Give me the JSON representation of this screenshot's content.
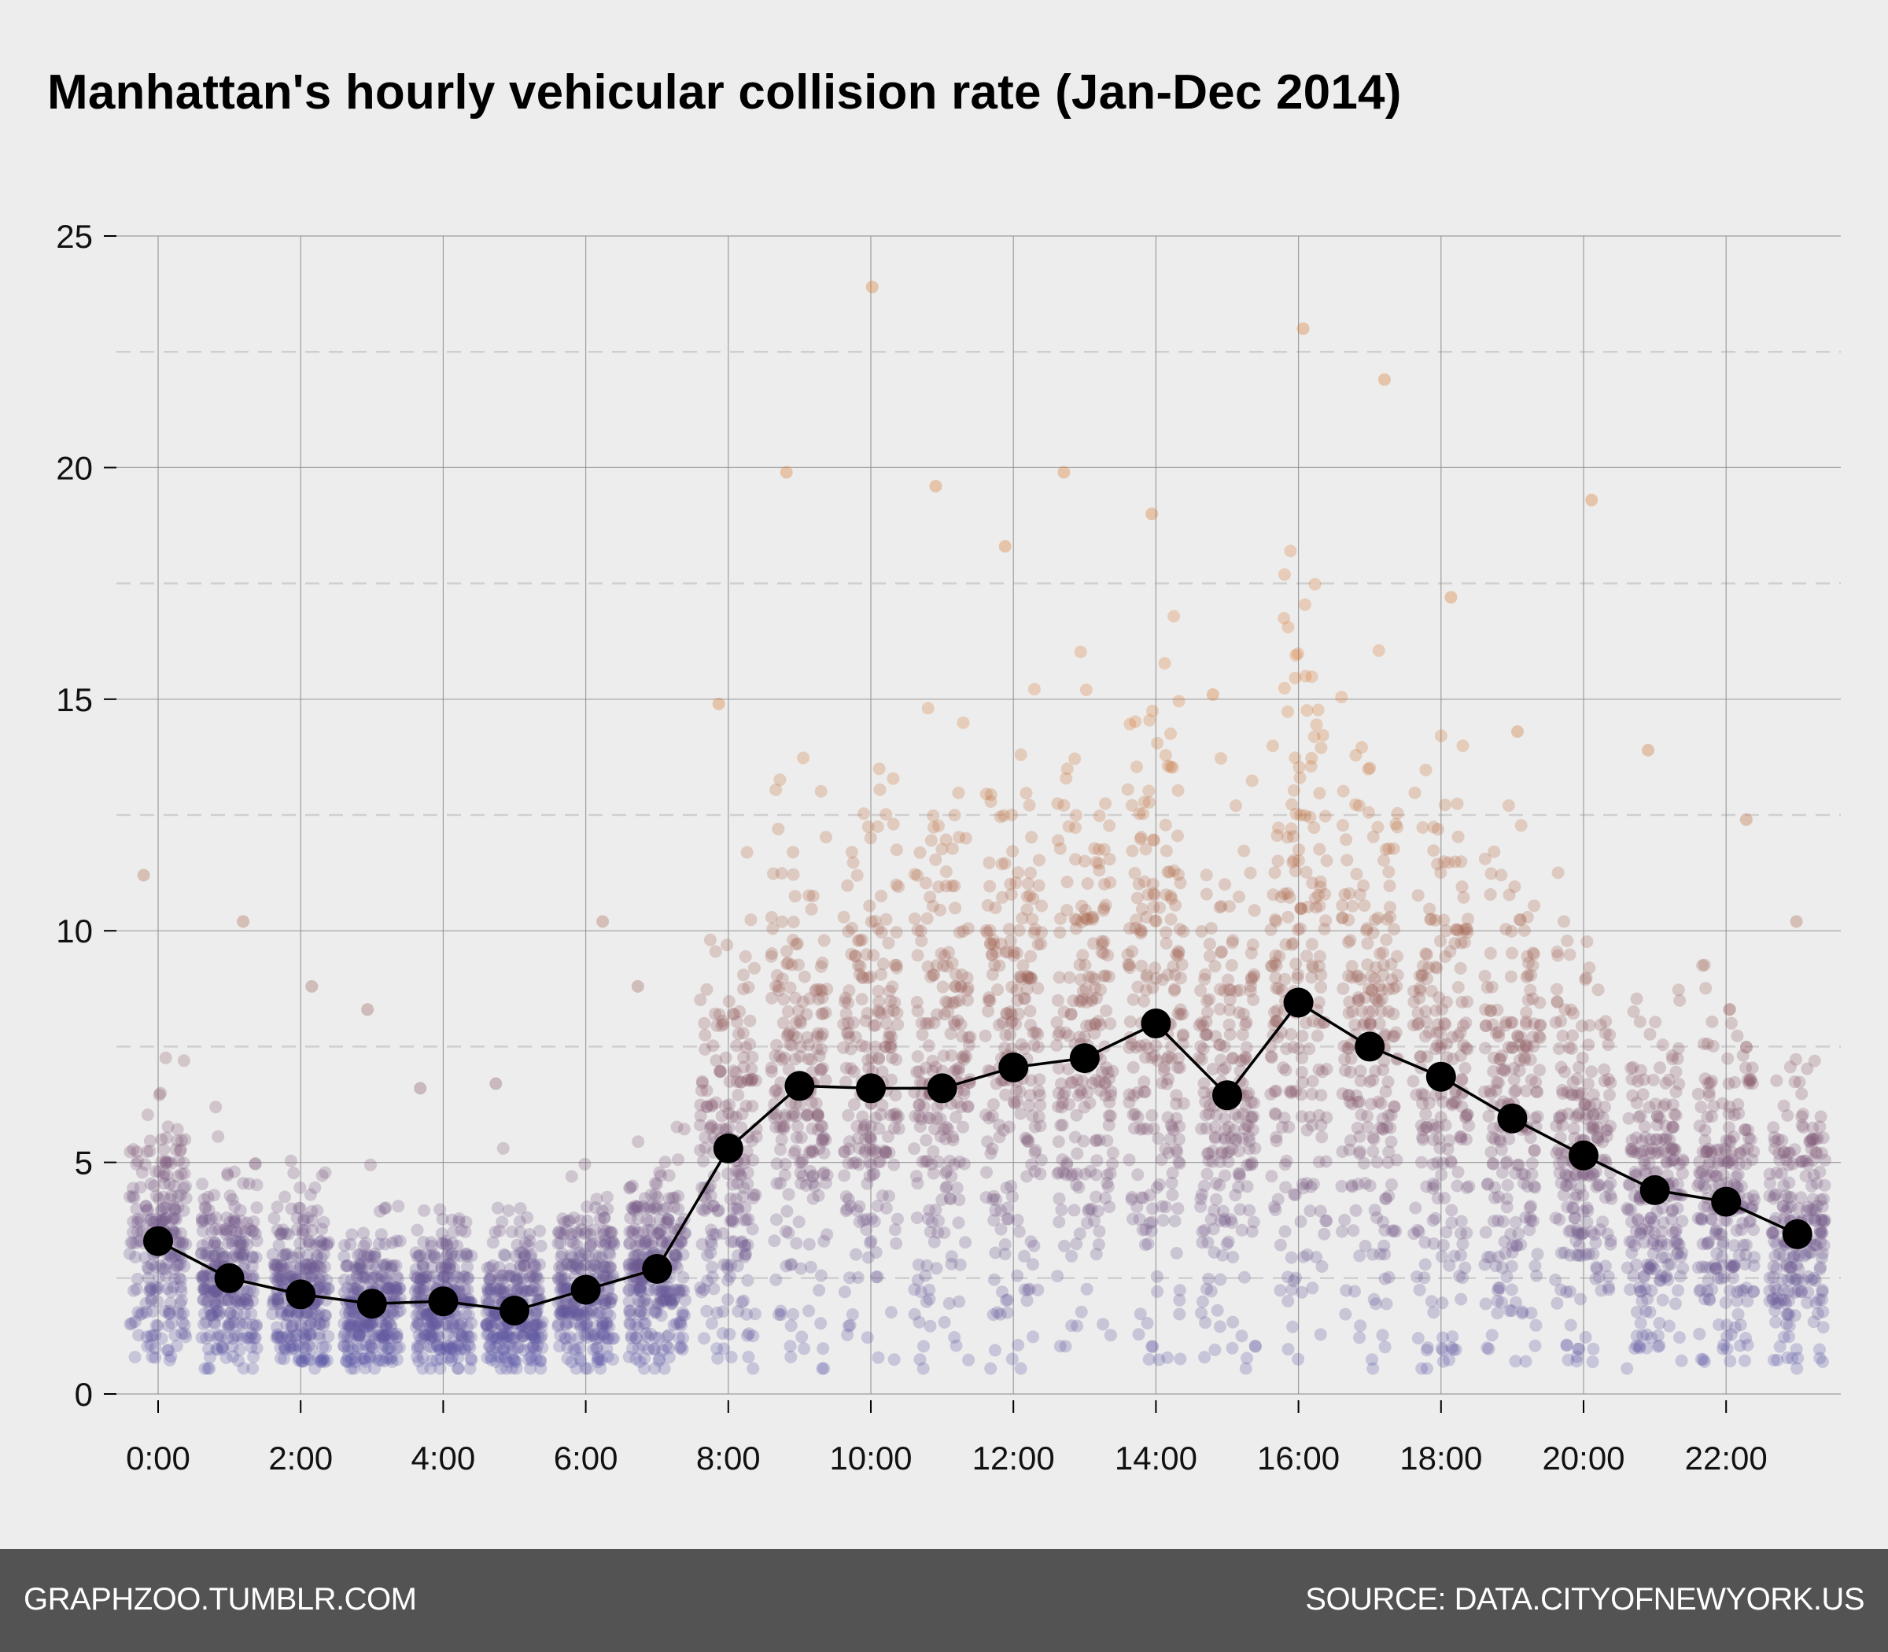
{
  "title": "Manhattan's hourly vehicular collision rate (Jan-Dec 2014)",
  "footer": {
    "left": "GRAPHZOO.TUMBLR.COM",
    "right": "SOURCE: DATA.CITYOFNEWYORK.US"
  },
  "colors": {
    "background": "#ededed",
    "footer": "#535353",
    "low_point": "#5b5aa8",
    "mid_point": "#8a5a66",
    "high_point": "#d6782c",
    "mean_line": "#000000"
  },
  "chart_data": {
    "type": "scatter",
    "title": "Manhattan's hourly vehicular collision rate (Jan-Dec 2014)",
    "xlabel": "",
    "ylabel": "",
    "x_tick_labels": [
      "0:00",
      "2:00",
      "4:00",
      "6:00",
      "8:00",
      "10:00",
      "12:00",
      "14:00",
      "16:00",
      "18:00",
      "20:00",
      "22:00"
    ],
    "x_tick_hours": [
      0,
      2,
      4,
      6,
      8,
      10,
      12,
      14,
      16,
      18,
      20,
      22
    ],
    "y_ticks": [
      0,
      5,
      10,
      15,
      20,
      25
    ],
    "xlim": [
      -0.6,
      23.6
    ],
    "ylim": [
      0,
      25
    ],
    "grid": true,
    "minor_gridlines_dashed": [
      2.5,
      7.5,
      12.5,
      17.5,
      22.5
    ],
    "hours": [
      0,
      1,
      2,
      3,
      4,
      5,
      6,
      7,
      8,
      9,
      10,
      11,
      12,
      13,
      14,
      15,
      16,
      17,
      18,
      19,
      20,
      21,
      22,
      23
    ],
    "series": [
      {
        "name": "",
        "type": "line",
        "values": [
          3.3,
          2.5,
          2.15,
          1.95,
          2.0,
          1.8,
          2.25,
          2.7,
          5.3,
          6.65,
          6.6,
          6.6,
          7.05,
          7.25,
          8.0,
          6.45,
          8.45,
          7.5,
          6.85,
          5.95,
          5.15,
          4.4,
          4.15,
          3.45
        ]
      },
      {
        "name": "",
        "type": "scatter",
        "description_of_spread": "daily rates per hour, jittered; approximate max per hour",
        "max_values": [
          11.2,
          10.2,
          8.8,
          8.3,
          6.6,
          6.7,
          10.2,
          8.8,
          14.9,
          19.9,
          23.9,
          19.6,
          18.3,
          19.9,
          19.0,
          15.1,
          23.0,
          21.9,
          17.2,
          14.3,
          19.3,
          13.9,
          12.4,
          10.2
        ]
      }
    ]
  }
}
